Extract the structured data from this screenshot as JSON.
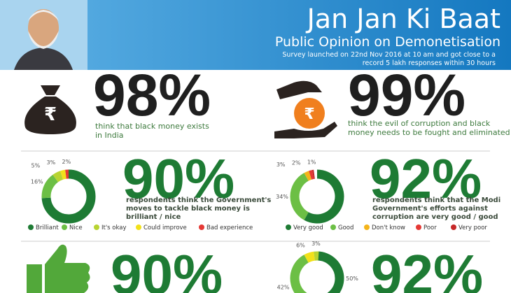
{
  "header": {
    "title": "Jan Jan Ki Baat",
    "subtitle": "Public Opinion on Demonetisation",
    "note_lines": [
      "Survey launched on 22nd Nov 2016 at 10 am and got close to a",
      "record 5 lakh responses within 30 hours"
    ]
  },
  "stats": [
    {
      "figure": "98%",
      "text_lines": [
        "think that black money exists",
        "in India"
      ]
    },
    {
      "figure": "99%",
      "text_lines": [
        "think the evil of corruption and black",
        "money needs to be fought and eliminated"
      ]
    }
  ],
  "donuts": [
    {
      "figure": "90%",
      "text_lines": [
        "respondents think the Government's",
        "moves to tackle black money is",
        "brilliant / nice"
      ],
      "segments": [
        {
          "name": "Brilliant",
          "color": "#1e7b34",
          "value": 74
        },
        {
          "name": "Nice",
          "color": "#6cbf45",
          "value": 16,
          "label": "16%"
        },
        {
          "name": "It's okay",
          "color": "#b8d432",
          "value": 5,
          "label": "5%"
        },
        {
          "name": "Could improve",
          "color": "#f2e11a",
          "value": 3,
          "label": "3%"
        },
        {
          "name": "Bad experience",
          "color": "#e53935",
          "value": 2,
          "label": "2%"
        }
      ]
    },
    {
      "figure": "92%",
      "text_lines": [
        "respondents think that the Modi",
        "Government's efforts against",
        "corruption are very good / good"
      ],
      "segments": [
        {
          "name": "Very good",
          "color": "#1e7b34",
          "value": 58
        },
        {
          "name": "Good",
          "color": "#6cbf45",
          "value": 34,
          "label": "34%"
        },
        {
          "name": "Don't know",
          "color": "#f4b41a",
          "value": 3,
          "label": "3%"
        },
        {
          "name": "Poor",
          "color": "#e53935",
          "value": 2,
          "label": "2%"
        },
        {
          "name": "Very poor",
          "color": "#c62828",
          "value": 1,
          "label": "1%"
        }
      ]
    },
    {
      "figure": "92%",
      "segments": [
        {
          "color": "#1e7b34",
          "value": 50,
          "label": "50%"
        },
        {
          "color": "#6cbf45",
          "value": 42,
          "label": "42%"
        },
        {
          "color": "#f2e11a",
          "value": 6,
          "label": "6%"
        },
        {
          "color": "#b8d432",
          "value": 3,
          "label": "3%"
        }
      ]
    }
  ],
  "bottom_left": {
    "figure": "90%"
  }
}
